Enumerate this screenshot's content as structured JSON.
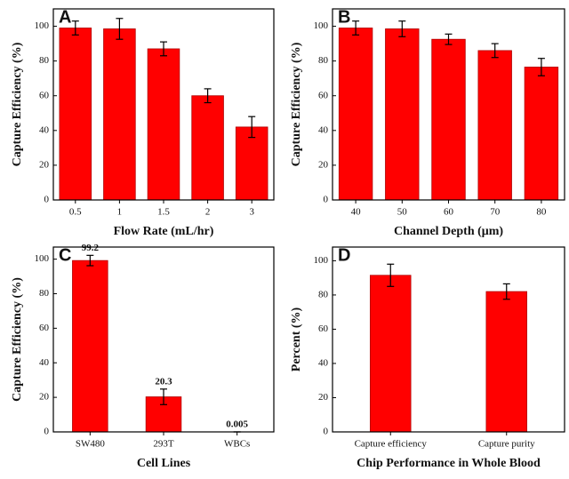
{
  "chart_data": [
    {
      "type": "bar",
      "label": "A",
      "ylabel": "Capture Efficiency (%)",
      "xlabel": "Flow Rate (mL/hr)",
      "categories": [
        "0.5",
        "1",
        "1.5",
        "2",
        "3"
      ],
      "values": [
        99,
        98.5,
        87,
        60,
        42
      ],
      "errors": [
        4,
        6,
        4,
        4,
        6
      ],
      "color": "#ff0000",
      "ylim": [
        0,
        110
      ],
      "yticks": [
        0,
        20,
        40,
        60,
        80,
        100
      ]
    },
    {
      "type": "bar",
      "label": "B",
      "ylabel": "Capture Efficiency (%)",
      "xlabel": "Channel Depth (μm)",
      "categories": [
        "40",
        "50",
        "60",
        "70",
        "80"
      ],
      "values": [
        99,
        98.5,
        92.5,
        86,
        76.5
      ],
      "errors": [
        4,
        4.5,
        3,
        4,
        5
      ],
      "color": "#ff0000",
      "ylim": [
        0,
        110
      ],
      "yticks": [
        0,
        20,
        40,
        60,
        80,
        100
      ]
    },
    {
      "type": "bar",
      "label": "C",
      "ylabel": "Capture Efficiency (%)",
      "xlabel": "Cell Lines",
      "categories": [
        "SW480",
        "293T",
        "WBCs"
      ],
      "values": [
        99.2,
        20.3,
        0.005
      ],
      "errors": [
        3,
        4.5,
        0
      ],
      "color": "#ff0000",
      "ylim": [
        0,
        107
      ],
      "yticks": [
        0,
        20,
        40,
        60,
        80,
        100
      ],
      "show_values": true
    },
    {
      "type": "bar",
      "label": "D",
      "ylabel": "Percent (%)",
      "xlabel": "Chip Performance in Whole Blood",
      "categories": [
        "Capture efficiency",
        "Capture purity"
      ],
      "values": [
        91.5,
        82
      ],
      "errors": [
        6.5,
        4.5
      ],
      "color": "#ff0000",
      "ylim": [
        0,
        108
      ],
      "yticks": [
        0,
        20,
        40,
        60,
        80,
        100
      ]
    }
  ]
}
